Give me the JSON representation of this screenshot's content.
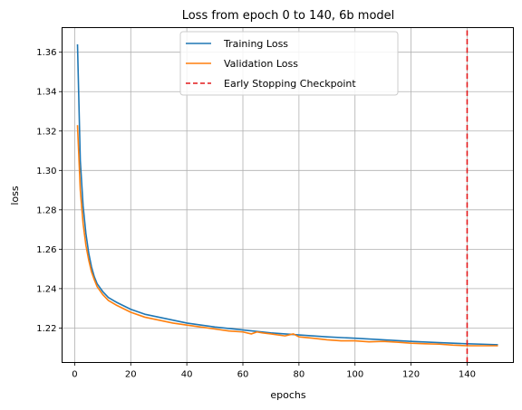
{
  "chart_data": {
    "type": "line",
    "title": "Loss from epoch 0 to 140, 6b model",
    "xlabel": "epochs",
    "ylabel": "loss",
    "xlim": [
      -4.5,
      156.5
    ],
    "ylim": [
      1.2025,
      1.3725
    ],
    "xticks": [
      0,
      20,
      40,
      60,
      80,
      100,
      120,
      140
    ],
    "yticks": [
      1.22,
      1.24,
      1.26,
      1.28,
      1.3,
      1.32,
      1.34,
      1.36
    ],
    "ytick_labels": [
      "1.22",
      "1.24",
      "1.26",
      "1.28",
      "1.30",
      "1.32",
      "1.34",
      "1.36"
    ],
    "grid": true,
    "legend_position": "top-center",
    "early_stop_epoch": 140,
    "colors": {
      "training": "#1f77b4",
      "validation": "#ff7f0e",
      "checkpoint": "#e31a1c",
      "grid": "#b0b0b0"
    },
    "series": [
      {
        "name": "Training Loss",
        "x": [
          1,
          2,
          3,
          4,
          5,
          6,
          7,
          8,
          10,
          12,
          15,
          20,
          25,
          30,
          40,
          50,
          60,
          70,
          80,
          90,
          100,
          110,
          120,
          130,
          140,
          145,
          151
        ],
        "y": [
          1.364,
          1.305,
          1.282,
          1.268,
          1.258,
          1.251,
          1.246,
          1.2425,
          1.2385,
          1.2355,
          1.233,
          1.2295,
          1.227,
          1.2255,
          1.2225,
          1.2205,
          1.219,
          1.2175,
          1.2165,
          1.2155,
          1.2148,
          1.214,
          1.2132,
          1.2126,
          1.212,
          1.2118,
          1.2115
        ]
      },
      {
        "name": "Validation Loss",
        "x": [
          1,
          2,
          3,
          4,
          5,
          6,
          7,
          8,
          10,
          12,
          15,
          20,
          25,
          30,
          35,
          40,
          45,
          50,
          55,
          60,
          63,
          65,
          67,
          70,
          75,
          78,
          80,
          85,
          90,
          95,
          100,
          105,
          110,
          115,
          120,
          125,
          130,
          135,
          140,
          145,
          151
        ],
        "y": [
          1.323,
          1.29,
          1.273,
          1.262,
          1.2545,
          1.2485,
          1.2445,
          1.241,
          1.237,
          1.234,
          1.2315,
          1.228,
          1.2255,
          1.224,
          1.2225,
          1.2215,
          1.2205,
          1.2195,
          1.2185,
          1.218,
          1.217,
          1.218,
          1.2175,
          1.217,
          1.216,
          1.217,
          1.2155,
          1.2148,
          1.214,
          1.2135,
          1.2135,
          1.213,
          1.2132,
          1.2128,
          1.2123,
          1.212,
          1.2118,
          1.2113,
          1.211,
          1.211,
          1.211
        ]
      },
      {
        "name": "Early Stopping Checkpoint",
        "x": [
          140,
          140
        ],
        "y": [
          1.2025,
          1.3725
        ]
      }
    ]
  }
}
